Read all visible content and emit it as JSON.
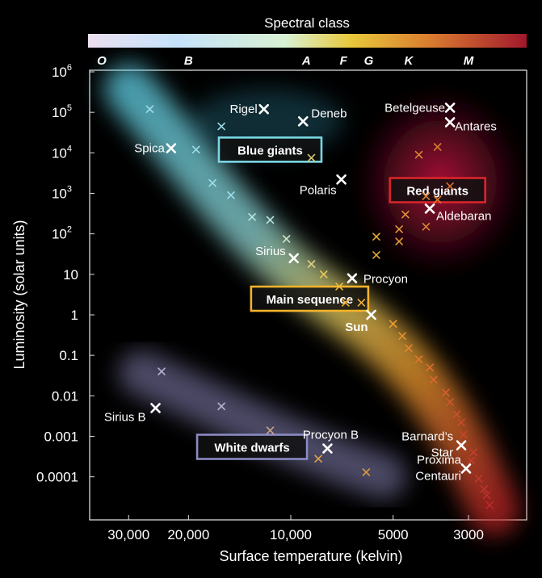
{
  "chart_data": {
    "type": "scatter",
    "title": "",
    "xlabel": "Surface temperature (kelvin)",
    "ylabel": "Luminosity (solar units)",
    "x_scale": "log-reversed",
    "y_scale": "log",
    "xlim": [
      45000,
      2200
    ],
    "ylim": [
      2e-05,
      1000000
    ],
    "x_ticks": [
      {
        "value": 30000,
        "label": "30,000"
      },
      {
        "value": 20000,
        "label": "20,000"
      },
      {
        "value": 10000,
        "label": "10,000"
      },
      {
        "value": 5000,
        "label": "5000"
      },
      {
        "value": 3000,
        "label": "3000"
      }
    ],
    "y_ticks": [
      {
        "value": 1000000,
        "base": "10",
        "exp": "6"
      },
      {
        "value": 100000,
        "base": "10",
        "exp": "5"
      },
      {
        "value": 10000,
        "base": "10",
        "exp": "4"
      },
      {
        "value": 1000,
        "base": "10",
        "exp": "3"
      },
      {
        "value": 100,
        "base": "10",
        "exp": "2"
      },
      {
        "value": 10,
        "base": "10",
        "exp": ""
      },
      {
        "value": 1,
        "base": "1",
        "exp": ""
      },
      {
        "value": 0.1,
        "base": "0.1",
        "exp": ""
      },
      {
        "value": 0.01,
        "base": "0.01",
        "exp": ""
      },
      {
        "value": 0.001,
        "base": "0.001",
        "exp": ""
      },
      {
        "value": 0.0001,
        "base": "0.0001",
        "exp": ""
      }
    ],
    "spectral_bar": {
      "title": "Spectral class",
      "classes": [
        {
          "label": "O",
          "temp": 36000
        },
        {
          "label": "B",
          "temp": 20000
        },
        {
          "label": "A",
          "temp": 9000
        },
        {
          "label": "F",
          "temp": 7000
        },
        {
          "label": "G",
          "temp": 5900
        },
        {
          "label": "K",
          "temp": 4500
        },
        {
          "label": "M",
          "temp": 3000
        }
      ],
      "colors": [
        "#e7dcee",
        "#c5e3ff",
        "#d7f0d0",
        "#e8c53a",
        "#d87a2e",
        "#a0182c"
      ]
    },
    "regions": [
      {
        "label": "Blue giants",
        "color": "#7ad8e6",
        "temp": 11500,
        "lum": 12000
      },
      {
        "label": "Red giants",
        "color": "#d9242b",
        "temp": 3700,
        "lum": 1200
      },
      {
        "label": "Main sequence",
        "color": "#f4b32a",
        "temp": 8800,
        "lum": 2.5
      },
      {
        "label": "White dwarfs",
        "color": "#8a8ac4",
        "temp": 13000,
        "lum": 0.00055
      }
    ],
    "named_stars": [
      {
        "name": "Rigel",
        "temp": 12000,
        "lum": 120000,
        "anchor": "end",
        "dx": -8,
        "dy": 5
      },
      {
        "name": "Deneb",
        "temp": 9200,
        "lum": 60000,
        "anchor": "start",
        "dx": 10,
        "dy": -5
      },
      {
        "name": "Spica",
        "temp": 22500,
        "lum": 13000,
        "anchor": "end",
        "dx": -8,
        "dy": 5
      },
      {
        "name": "Polaris",
        "temp": 7100,
        "lum": 2200,
        "anchor": "end",
        "dx": -6,
        "dy": 18
      },
      {
        "name": "Betelgeuse",
        "temp": 3400,
        "lum": 130000,
        "anchor": "end",
        "dx": -6,
        "dy": 5
      },
      {
        "name": "Antares",
        "temp": 3400,
        "lum": 57000,
        "anchor": "start",
        "dx": 6,
        "dy": 10
      },
      {
        "name": "Aldebaran",
        "temp": 3900,
        "lum": 420,
        "anchor": "start",
        "dx": 8,
        "dy": 14
      },
      {
        "name": "Sirius",
        "temp": 9800,
        "lum": 25,
        "anchor": "end",
        "dx": -10,
        "dy": -4
      },
      {
        "name": "Procyon",
        "temp": 6600,
        "lum": 8,
        "anchor": "start",
        "dx": 14,
        "dy": 6
      },
      {
        "name": "Sun",
        "temp": 5800,
        "lum": 1,
        "anchor": "end",
        "dx": -4,
        "dy": 20
      },
      {
        "name": "Sirius B",
        "temp": 25000,
        "lum": 0.005,
        "anchor": "end",
        "dx": -12,
        "dy": 16
      },
      {
        "name": "Procyon B",
        "temp": 7800,
        "lum": 0.0005,
        "anchor": "middle",
        "dx": 4,
        "dy": -12
      },
      {
        "name": "Barnard's Star",
        "temp": 3150,
        "lum": 0.0006,
        "anchor": "end",
        "dx": -10,
        "dy": 4,
        "label_lines": [
          "Barnard’s",
          "Star"
        ]
      },
      {
        "name": "Proxima Centauri",
        "temp": 3050,
        "lum": 0.00016,
        "anchor": "end",
        "dx": -6,
        "dy": 4,
        "label_lines": [
          "Proxima",
          "Centauri"
        ]
      }
    ],
    "other_stars": [
      {
        "temp": 26000,
        "lum": 120000,
        "color": "#9fdde8"
      },
      {
        "temp": 16000,
        "lum": 45000,
        "color": "#9fdde8"
      },
      {
        "temp": 19000,
        "lum": 12000,
        "color": "#9fdde8"
      },
      {
        "temp": 17000,
        "lum": 1800,
        "color": "#9fdde8"
      },
      {
        "temp": 15000,
        "lum": 900,
        "color": "#9fdde8"
      },
      {
        "temp": 13000,
        "lum": 260,
        "color": "#b8e6e0"
      },
      {
        "temp": 11500,
        "lum": 220,
        "color": "#b8e6e0"
      },
      {
        "temp": 10300,
        "lum": 75,
        "color": "#cfe8c8"
      },
      {
        "temp": 8700,
        "lum": 7500,
        "color": "#d8c67a"
      },
      {
        "temp": 8700,
        "lum": 18,
        "color": "#e2d48a"
      },
      {
        "temp": 8000,
        "lum": 10,
        "color": "#e8cc5a"
      },
      {
        "temp": 7200,
        "lum": 5,
        "color": "#eec040"
      },
      {
        "temp": 6200,
        "lum": 2,
        "color": "#f0b23a"
      },
      {
        "temp": 6900,
        "lum": 2,
        "color": "#f0b23a"
      },
      {
        "temp": 5000,
        "lum": 0.6,
        "color": "#eda032"
      },
      {
        "temp": 4700,
        "lum": 0.3,
        "color": "#e89030"
      },
      {
        "temp": 4500,
        "lum": 0.15,
        "color": "#e5852e"
      },
      {
        "temp": 4200,
        "lum": 0.08,
        "color": "#e07a2e"
      },
      {
        "temp": 3900,
        "lum": 0.05,
        "color": "#dc702e"
      },
      {
        "temp": 3800,
        "lum": 0.025,
        "color": "#d8682e"
      },
      {
        "temp": 3500,
        "lum": 0.012,
        "color": "#d4602e"
      },
      {
        "temp": 3400,
        "lum": 0.007,
        "color": "#d0582e"
      },
      {
        "temp": 3250,
        "lum": 0.0035,
        "color": "#cc502e"
      },
      {
        "temp": 3150,
        "lum": 0.0022,
        "color": "#c84a2e"
      },
      {
        "temp": 3100,
        "lum": 0.0011,
        "color": "#c4442e"
      },
      {
        "temp": 2900,
        "lum": 0.0004,
        "color": "#c23e2e"
      },
      {
        "temp": 2950,
        "lum": 0.00025,
        "color": "#c23e2e"
      },
      {
        "temp": 2800,
        "lum": 9e-05,
        "color": "#be382e"
      },
      {
        "temp": 2700,
        "lum": 5e-05,
        "color": "#bc342e"
      },
      {
        "temp": 2650,
        "lum": 3.5e-05,
        "color": "#ba302e"
      },
      {
        "temp": 2600,
        "lum": 2e-05,
        "color": "#b82c2e"
      },
      {
        "temp": 5600,
        "lum": 85,
        "color": "#e6a83a"
      },
      {
        "temp": 5600,
        "lum": 30,
        "color": "#e6a83a"
      },
      {
        "temp": 4800,
        "lum": 65,
        "color": "#e29a36"
      },
      {
        "temp": 4800,
        "lum": 130,
        "color": "#e29a36"
      },
      {
        "temp": 4600,
        "lum": 300,
        "color": "#e09236"
      },
      {
        "temp": 4000,
        "lum": 150,
        "color": "#dc8432"
      },
      {
        "temp": 4000,
        "lum": 850,
        "color": "#dc8432"
      },
      {
        "temp": 3700,
        "lum": 700,
        "color": "#d87a30"
      },
      {
        "temp": 3700,
        "lum": 14000,
        "color": "#d87a30"
      },
      {
        "temp": 3400,
        "lum": 1500,
        "color": "#d4722e"
      },
      {
        "temp": 4200,
        "lum": 9000,
        "color": "#dc8432"
      },
      {
        "temp": 24000,
        "lum": 0.04,
        "color": "#b5b5d5"
      },
      {
        "temp": 16000,
        "lum": 0.0055,
        "color": "#b5b5d5"
      },
      {
        "temp": 11500,
        "lum": 0.0014,
        "color": "#c8a880"
      },
      {
        "temp": 8300,
        "lum": 0.00028,
        "color": "#e0a040"
      },
      {
        "temp": 6000,
        "lum": 0.00013,
        "color": "#e09a36"
      }
    ]
  }
}
